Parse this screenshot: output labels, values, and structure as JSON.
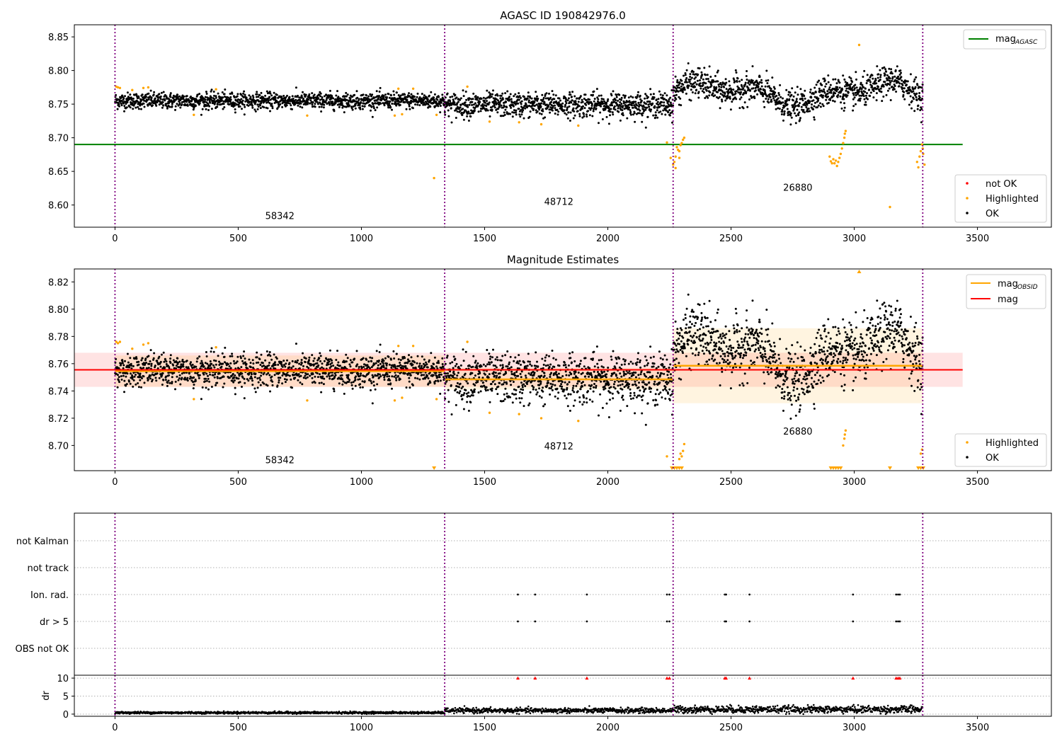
{
  "figure": {
    "title": "AGASC ID 190842976.0"
  },
  "chart_data": [
    {
      "type": "scatter",
      "name": "agasc-panel",
      "title": "AGASC ID 190842976.0",
      "xlim": [
        -165,
        3800
      ],
      "ylim": [
        8.567,
        8.868
      ],
      "x_ticks": [
        0,
        500,
        1000,
        1500,
        2000,
        2500,
        3000,
        3500
      ],
      "y_ticks": [
        8.6,
        8.65,
        8.7,
        8.75,
        8.8,
        8.85
      ],
      "y_tick_labels": [
        "8.60",
        "8.65",
        "8.70",
        "8.75",
        "8.80",
        "8.85"
      ],
      "x_tick_labels": [
        "0",
        "500",
        "1000",
        "1500",
        "2000",
        "2500",
        "3000",
        "3500"
      ],
      "obsid_boundaries": [
        0,
        1338,
        2265,
        3278
      ],
      "obsid_labels": [
        {
          "text": "58342",
          "x": 669,
          "y": 8.579
        },
        {
          "text": "48712",
          "x": 1801,
          "y": 8.6
        },
        {
          "text": "26880",
          "x": 2771,
          "y": 8.621
        }
      ],
      "mag_agasc": 8.69,
      "mag_agasc_xrange": [
        -165,
        3440
      ],
      "legend_top": [
        {
          "label": "mag",
          "sub": "AGASC",
          "color": "#008000"
        }
      ],
      "legend_bottom": [
        {
          "label": "not OK",
          "color": "#ff0000"
        },
        {
          "label": "Highlighted",
          "color": "#ffa500"
        },
        {
          "label": "OK",
          "color": "#000000"
        }
      ],
      "legend_top_position": "upper right",
      "legend_bottom_position": "lower right",
      "ok_segments": [
        {
          "x": [
            0,
            1338
          ],
          "mean": 8.755,
          "noise": 0.006,
          "trend": 0
        },
        {
          "x": [
            1338,
            2265
          ],
          "mean": 8.749,
          "noise": 0.009,
          "trend": 0
        },
        {
          "x": [
            2265,
            3278
          ],
          "mean": 8.766,
          "noise": 0.011,
          "trend": 1
        }
      ],
      "highlighted_points": [
        [
          5,
          8.776
        ],
        [
          12,
          8.775
        ],
        [
          20,
          8.774
        ],
        [
          70,
          8.771
        ],
        [
          115,
          8.774
        ],
        [
          135,
          8.775
        ],
        [
          320,
          8.734
        ],
        [
          410,
          8.772
        ],
        [
          780,
          8.733
        ],
        [
          1135,
          8.733
        ],
        [
          1150,
          8.773
        ],
        [
          1165,
          8.735
        ],
        [
          1210,
          8.773
        ],
        [
          1295,
          8.64
        ],
        [
          1305,
          8.734
        ],
        [
          1430,
          8.776
        ],
        [
          1520,
          8.724
        ],
        [
          1640,
          8.723
        ],
        [
          1730,
          8.72
        ],
        [
          1880,
          8.718
        ],
        [
          2240,
          8.693
        ],
        [
          2255,
          8.67
        ],
        [
          2265,
          8.66
        ],
        [
          2270,
          8.664
        ],
        [
          2275,
          8.672
        ],
        [
          2280,
          8.686
        ],
        [
          2285,
          8.682
        ],
        [
          2290,
          8.68
        ],
        [
          2295,
          8.689
        ],
        [
          2300,
          8.692
        ],
        [
          2305,
          8.697
        ],
        [
          2310,
          8.7
        ],
        [
          2275,
          8.655
        ],
        [
          2290,
          8.67
        ],
        [
          2900,
          8.672
        ],
        [
          2905,
          8.665
        ],
        [
          2910,
          8.662
        ],
        [
          2915,
          8.668
        ],
        [
          2920,
          8.662
        ],
        [
          2925,
          8.666
        ],
        [
          2930,
          8.658
        ],
        [
          2935,
          8.664
        ],
        [
          2940,
          8.67
        ],
        [
          2945,
          8.676
        ],
        [
          2950,
          8.684
        ],
        [
          2955,
          8.692
        ],
        [
          2960,
          8.7
        ],
        [
          2962,
          8.706
        ],
        [
          2965,
          8.71
        ],
        [
          3020,
          8.838
        ],
        [
          3145,
          8.597
        ],
        [
          3255,
          8.664
        ],
        [
          3260,
          8.656
        ],
        [
          3265,
          8.672
        ],
        [
          3270,
          8.68
        ],
        [
          3275,
          8.69
        ],
        [
          3278,
          8.684
        ],
        [
          3280,
          8.676
        ],
        [
          3285,
          8.66
        ]
      ],
      "notok_points": []
    },
    {
      "type": "scatter",
      "name": "magnitude-panel",
      "title": "Magnitude Estimates",
      "xlim": [
        -165,
        3800
      ],
      "ylim": [
        8.6815,
        8.8295
      ],
      "x_ticks": [
        0,
        500,
        1000,
        1500,
        2000,
        2500,
        3000,
        3500
      ],
      "x_tick_labels": [
        "0",
        "500",
        "1000",
        "1500",
        "2000",
        "2500",
        "3000",
        "3500"
      ],
      "y_ticks": [
        8.7,
        8.72,
        8.74,
        8.76,
        8.78,
        8.8,
        8.82
      ],
      "y_tick_labels": [
        "8.70",
        "8.72",
        "8.74",
        "8.76",
        "8.78",
        "8.80",
        "8.82"
      ],
      "obsid_boundaries": [
        0,
        1338,
        2265,
        3278
      ],
      "obsid_labels": [
        {
          "text": "58342",
          "x": 669,
          "y": 8.687
        },
        {
          "text": "48712",
          "x": 1801,
          "y": 8.697
        },
        {
          "text": "26880",
          "x": 2771,
          "y": 8.708
        }
      ],
      "mag_line": {
        "y": 8.7555,
        "band": [
          8.743,
          8.768
        ],
        "xrange": [
          -165,
          3440
        ],
        "color": "#ff0000"
      },
      "obsid_mags": [
        {
          "x": [
            0,
            1338
          ],
          "y": 8.7545,
          "band": [
            8.743,
            8.766
          ]
        },
        {
          "x": [
            1338,
            2265
          ],
          "y": 8.7485,
          "band": [
            8.741,
            8.757
          ]
        },
        {
          "x": [
            2265,
            3278
          ],
          "y": 8.7585,
          "band": [
            8.731,
            8.786
          ]
        }
      ],
      "legend_top": [
        {
          "label": "mag",
          "sub": "OBSID",
          "color": "#ffa500"
        },
        {
          "label": "mag",
          "sub": "",
          "color": "#ff0000"
        }
      ],
      "legend_bottom": [
        {
          "label": "Highlighted",
          "color": "#ffa500"
        },
        {
          "label": "OK",
          "color": "#000000"
        }
      ],
      "legend_top_position": "upper right",
      "legend_bottom_position": "lower right",
      "highlighted_points": [
        [
          5,
          8.776
        ],
        [
          12,
          8.775
        ],
        [
          20,
          8.776
        ],
        [
          70,
          8.771
        ],
        [
          115,
          8.774
        ],
        [
          135,
          8.775
        ],
        [
          320,
          8.734
        ],
        [
          410,
          8.772
        ],
        [
          780,
          8.733
        ],
        [
          1135,
          8.733
        ],
        [
          1150,
          8.773
        ],
        [
          1165,
          8.735
        ],
        [
          1210,
          8.773
        ],
        [
          1305,
          8.734
        ],
        [
          1430,
          8.776
        ],
        [
          1520,
          8.724
        ],
        [
          1640,
          8.723
        ],
        [
          1730,
          8.72
        ],
        [
          1880,
          8.718
        ],
        [
          2240,
          8.692
        ],
        [
          2290,
          8.69
        ],
        [
          2295,
          8.694
        ],
        [
          2300,
          8.692
        ],
        [
          2305,
          8.696
        ],
        [
          2310,
          8.701
        ],
        [
          2955,
          8.7
        ],
        [
          2960,
          8.705
        ],
        [
          2962,
          8.708
        ],
        [
          2965,
          8.711
        ],
        [
          3270,
          8.694
        ],
        [
          3275,
          8.697
        ]
      ],
      "offscale_markers": [
        1295,
        2260,
        2270,
        2280,
        2290,
        2300,
        2905,
        2915,
        2925,
        2935,
        2945,
        3145,
        3260,
        3270,
        3280
      ],
      "ok_segments_ref": "agasc-panel"
    },
    {
      "type": "scatter",
      "name": "flags-panel",
      "xlim": [
        -165,
        3800
      ],
      "x_ticks": [
        0,
        500,
        1000,
        1500,
        2000,
        2500,
        3000,
        3500
      ],
      "x_tick_labels": [
        "0",
        "500",
        "1000",
        "1500",
        "2000",
        "2500",
        "3000",
        "3500"
      ],
      "flag_rows": [
        "not Kalman",
        "not track",
        "Ion. rad.",
        "dr > 5",
        "OBS not OK"
      ],
      "obsid_boundaries": [
        0,
        1338,
        2265,
        3278
      ],
      "flagged_x": [
        1635,
        1705,
        1915,
        2240,
        2250,
        2475,
        2480,
        2575,
        2995,
        3170,
        3178,
        3185
      ],
      "dr": {
        "ylabel": "dr",
        "ylim": [
          -0.6,
          10.8
        ],
        "y_ticks": [
          0,
          5,
          10
        ],
        "y_tick_labels": [
          "0",
          "5",
          "10"
        ],
        "segments": [
          {
            "x": [
              0,
              1338
            ],
            "mean": 0.4,
            "noise": 0.15
          },
          {
            "x": [
              1338,
              2265
            ],
            "mean": 1.0,
            "noise": 0.35
          },
          {
            "x": [
              2265,
              3278
            ],
            "mean": 1.3,
            "noise": 0.5
          }
        ],
        "clipped_marker_value": 10
      }
    }
  ]
}
